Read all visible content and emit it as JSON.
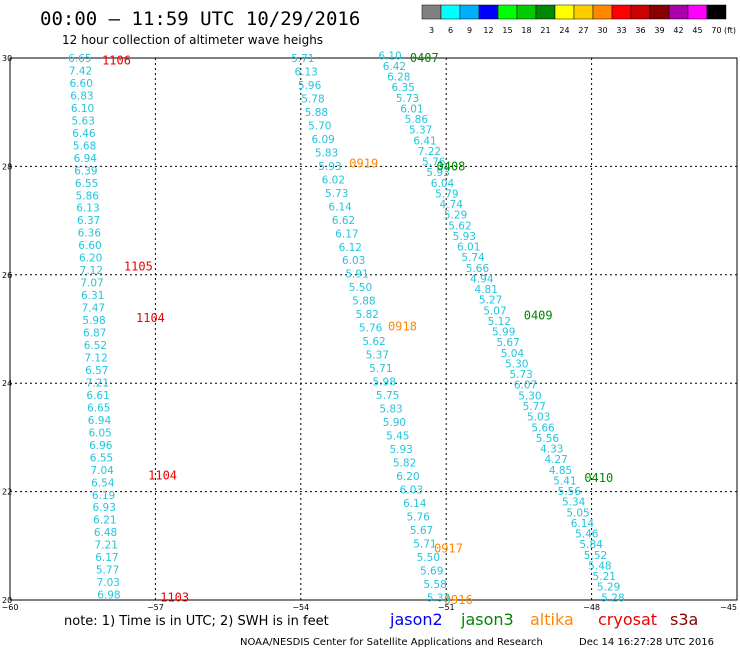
{
  "header": {
    "title": "00:00 – 11:59 UTC 10/29/2016",
    "subtitle": "12 hour collection of altimeter wave heighs"
  },
  "legend": {
    "unit": "(ft)",
    "bins": [
      {
        "label": "3",
        "color": "#808080"
      },
      {
        "label": "6",
        "color": "#00ffff"
      },
      {
        "label": "9",
        "color": "#00b0ff"
      },
      {
        "label": "12",
        "color": "#0000ff"
      },
      {
        "label": "15",
        "color": "#00ff00"
      },
      {
        "label": "18",
        "color": "#00cc00"
      },
      {
        "label": "21",
        "color": "#008800"
      },
      {
        "label": "24",
        "color": "#ffff00"
      },
      {
        "label": "27",
        "color": "#ffcc00"
      },
      {
        "label": "30",
        "color": "#ff8800"
      },
      {
        "label": "33",
        "color": "#ff0000"
      },
      {
        "label": "36",
        "color": "#cc0000"
      },
      {
        "label": "39",
        "color": "#880000"
      },
      {
        "label": "42",
        "color": "#aa00aa"
      },
      {
        "label": "45",
        "color": "#ff00ff"
      },
      {
        "label": "70",
        "color": "#000000"
      }
    ]
  },
  "colors": {
    "value": "#22c5dd",
    "jason2": "#0000ee",
    "jason3": "#008800",
    "altika": "#ff8800",
    "cryosat": "#ee0000",
    "s3a": "#880000"
  },
  "chart_data": {
    "type": "scatter",
    "xlim": [
      -60,
      -45
    ],
    "ylim": [
      20,
      30
    ],
    "x_ticks": [
      -60,
      -57,
      -54,
      -51,
      -48,
      -45
    ],
    "x_tick_labels": [
      "−60",
      "−57",
      "−54",
      "−51",
      "−48",
      "−45"
    ],
    "y_ticks": [
      20,
      22,
      24,
      26,
      28,
      30
    ],
    "y_tick_labels": [
      "20",
      "22",
      "24",
      "26",
      "28",
      "30"
    ],
    "grid": true,
    "tracks": [
      {
        "satellite": "cryosat",
        "lon_start": -58.8,
        "lon_end": -58.2,
        "lat_start": 30.0,
        "lat_end": 20.1,
        "values": [
          "6.65",
          "7.42",
          "6.60",
          "6.83",
          "6.10",
          "5.63",
          "6.46",
          "5.68",
          "6.94",
          "6.39",
          "6.55",
          "5.86",
          "6.13",
          "6.37",
          "6.36",
          "6.60",
          "6.20",
          "7.12",
          "7.07",
          "6.31",
          "7.47",
          "5.98",
          "6.87",
          "6.52",
          "7.12",
          "6.57",
          "7.21",
          "6.61",
          "6.65",
          "6.94",
          "6.05",
          "6.96",
          "6.55",
          "7.04",
          "6.54",
          "6.19",
          "6.93",
          "6.21",
          "6.48",
          "7.21",
          "6.17",
          "5.77",
          "7.03",
          "6.98"
        ]
      },
      {
        "satellite": "altika",
        "lon_start": -54.2,
        "lon_end": -51.4,
        "lat_start": 30.0,
        "lat_end": 20.05,
        "values": [
          "5.71",
          "6.13",
          "5.96",
          "5.78",
          "5.88",
          "5.70",
          "6.09",
          "5.83",
          "5.93",
          "6.02",
          "5.73",
          "6.14",
          "6.62",
          "6.17",
          "6.12",
          "6.03",
          "5.91",
          "5.50",
          "5.88",
          "5.82",
          "5.76",
          "5.62",
          "5.37",
          "5.71",
          "5.98",
          "5.75",
          "5.83",
          "5.90",
          "5.45",
          "5.93",
          "5.82",
          "6.20",
          "6.03",
          "6.14",
          "5.76",
          "5.67",
          "5.71",
          "5.50",
          "5.69",
          "5.58",
          "5.33"
        ]
      },
      {
        "satellite": "jason3",
        "lon_start": -52.4,
        "lon_end": -47.8,
        "lat_start": 30.05,
        "lat_end": 20.05,
        "values": [
          "6.10",
          "6.42",
          "6.28",
          "6.35",
          "5.73",
          "6.01",
          "5.86",
          "5.37",
          "6.41",
          "7.22",
          "5.76",
          "5.93",
          "6.04",
          "5.79",
          "4.74",
          "5.29",
          "5.62",
          "5.93",
          "6.01",
          "5.74",
          "5.66",
          "4.94",
          "4.81",
          "5.27",
          "5.07",
          "5.12",
          "5.99",
          "5.67",
          "5.04",
          "5.30",
          "5.73",
          "6.07",
          "5.30",
          "5.77",
          "5.03",
          "5.66",
          "5.56",
          "4.33",
          "4.27",
          "4.85",
          "5.41",
          "5.56",
          "5.34",
          "5.05",
          "6.14",
          "5.46",
          "5.84",
          "5.52",
          "5.48",
          "5.21",
          "5.29",
          "5.28"
        ]
      }
    ],
    "pass_labels": [
      {
        "text": "1106",
        "satellite": "cryosat",
        "lon": -58.1,
        "lat": 29.95
      },
      {
        "text": "1105",
        "satellite": "cryosat",
        "lon": -57.65,
        "lat": 26.15
      },
      {
        "text": "1104",
        "satellite": "cryosat",
        "lon": -57.4,
        "lat": 25.2
      },
      {
        "text": "1104",
        "satellite": "cryosat",
        "lon": -57.15,
        "lat": 22.3
      },
      {
        "text": "1103",
        "satellite": "cryosat",
        "lon": -56.9,
        "lat": 20.05
      },
      {
        "text": "0919",
        "satellite": "altika",
        "lon": -53.0,
        "lat": 28.05
      },
      {
        "text": "0918",
        "satellite": "altika",
        "lon": -52.2,
        "lat": 25.05
      },
      {
        "text": "0917",
        "satellite": "altika",
        "lon": -51.25,
        "lat": 20.95
      },
      {
        "text": "0916",
        "satellite": "altika",
        "lon": -51.05,
        "lat": 20.0
      },
      {
        "text": "0407",
        "satellite": "jason3",
        "lon": -51.75,
        "lat": 30.0
      },
      {
        "text": "0408",
        "satellite": "jason3",
        "lon": -51.2,
        "lat": 28.0
      },
      {
        "text": "0409",
        "satellite": "jason3",
        "lon": -49.4,
        "lat": 25.25
      },
      {
        "text": "0410",
        "satellite": "jason3",
        "lon": -48.15,
        "lat": 22.25
      }
    ]
  },
  "footer": {
    "note": "note: 1) Time is in UTC; 2) SWH is in feet",
    "satellites": [
      {
        "key": "jason2",
        "label": "jason2"
      },
      {
        "key": "jason3",
        "label": "jason3"
      },
      {
        "key": "altika",
        "label": "altika"
      },
      {
        "key": "cryosat",
        "label": "cryosat"
      },
      {
        "key": "s3a",
        "label": "s3a"
      }
    ],
    "credit": "NOAA/NESDIS Center for Satellite Applications and Research",
    "timestamp": "Dec 14 16:27:28 UTC 2016"
  }
}
